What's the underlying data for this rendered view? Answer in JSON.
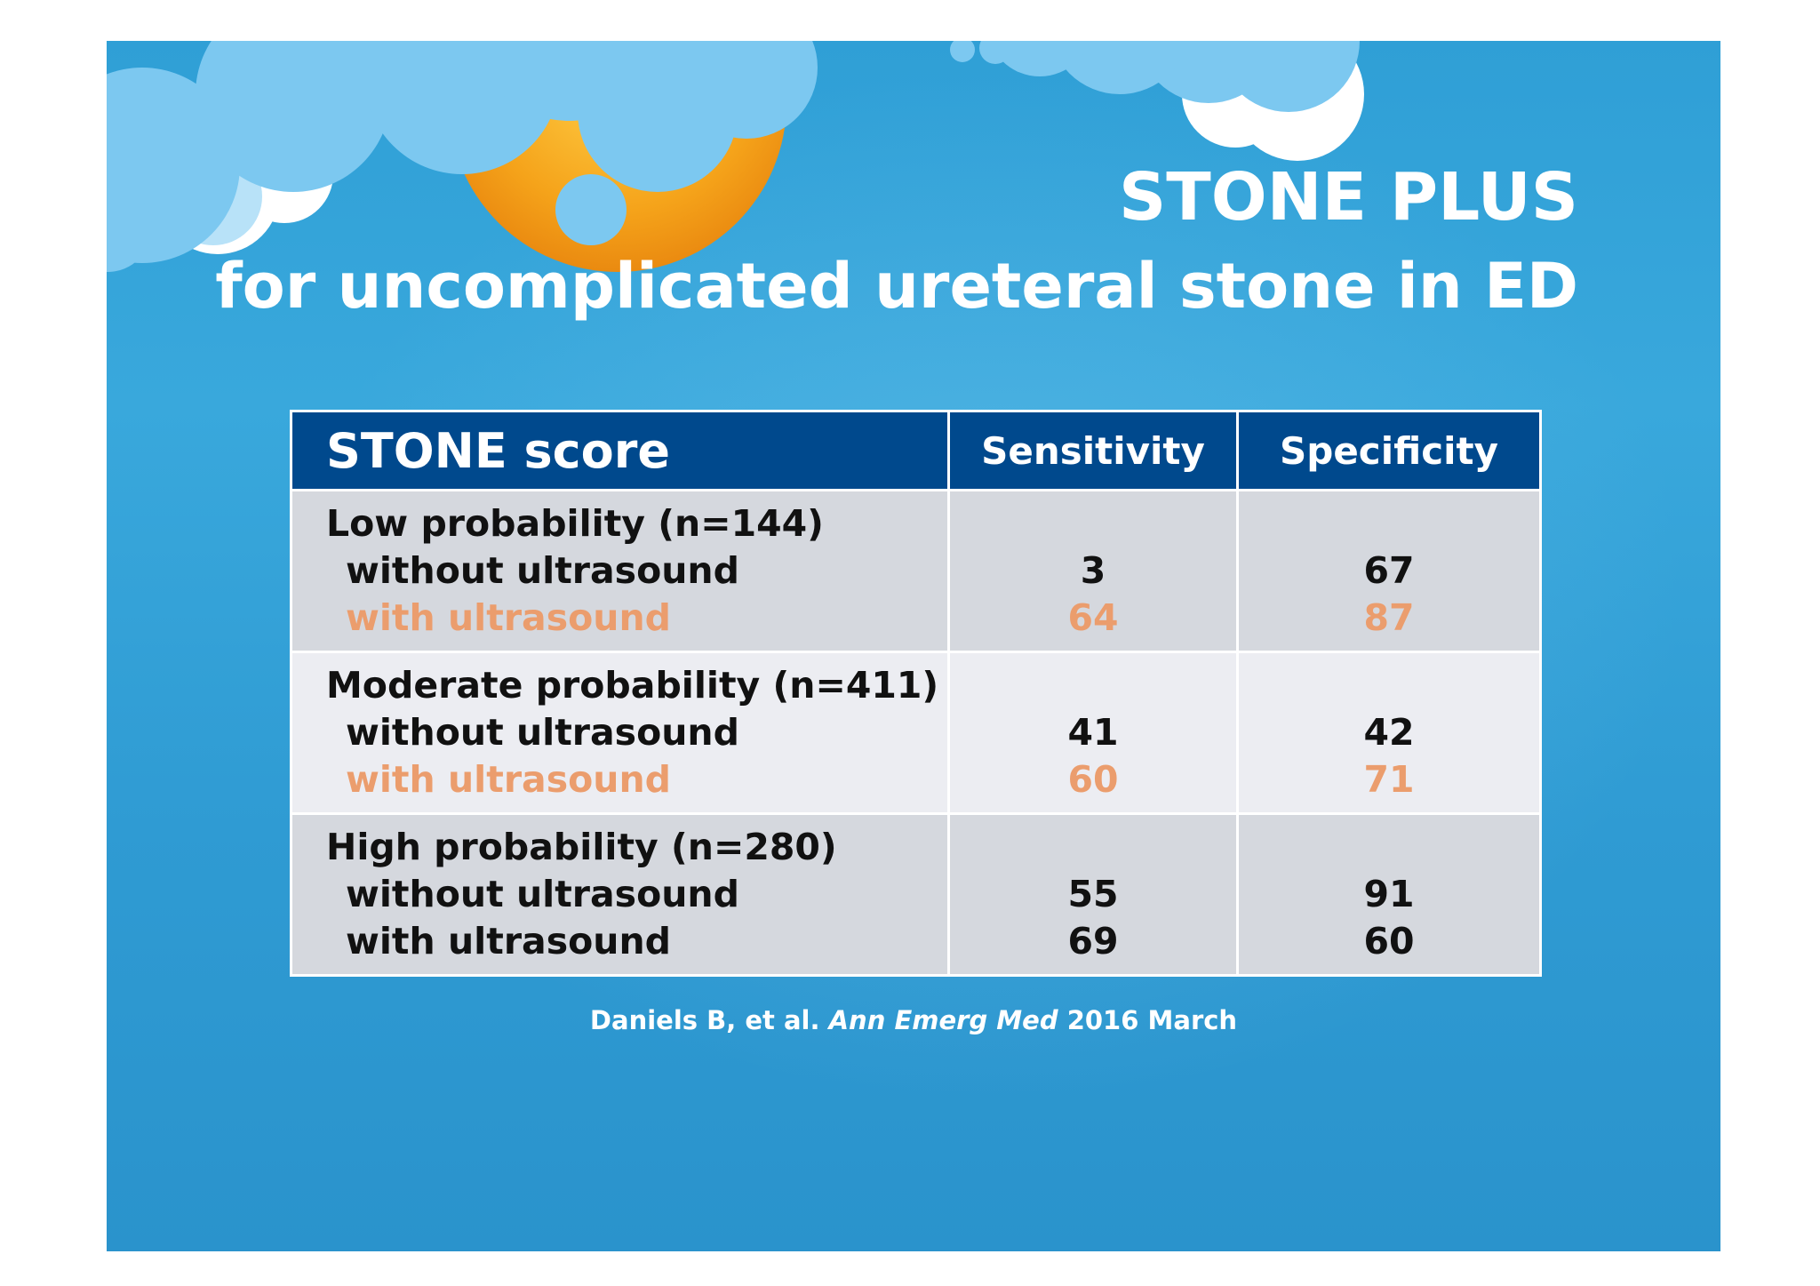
{
  "title": {
    "line1": "STONE PLUS",
    "line2": "for uncomplicated ureteral stone in ED"
  },
  "table": {
    "headers": [
      "STONE score",
      "Sensitivity",
      "Specificity"
    ],
    "groups": [
      {
        "label": "Low probability (n=144)",
        "rows": [
          {
            "label": "without ultrasound",
            "sensitivity": "3",
            "specificity": "67",
            "highlight": false
          },
          {
            "label": "with ultrasound",
            "sensitivity": "64",
            "specificity": "87",
            "highlight": true
          }
        ]
      },
      {
        "label": "Moderate probability (n=411)",
        "rows": [
          {
            "label": "without ultrasound",
            "sensitivity": "41",
            "specificity": "42",
            "highlight": false
          },
          {
            "label": "with ultrasound",
            "sensitivity": "60",
            "specificity": "71",
            "highlight": true
          }
        ]
      },
      {
        "label": "High probability (n=280)",
        "rows": [
          {
            "label": "without ultrasound",
            "sensitivity": "55",
            "specificity": "91",
            "highlight": false
          },
          {
            "label": "with ultrasound",
            "sensitivity": "69",
            "specificity": "60",
            "highlight": false
          }
        ]
      }
    ]
  },
  "citation": {
    "authors": "Daniels B, et al.",
    "journal": "Ann Emerg Med",
    "date": "2016 March"
  },
  "colors": {
    "background": "#2f9fd6",
    "header": "#00498d",
    "highlight": "#eb9d6d",
    "sun": "#f5a31a",
    "cloud": "#7cc8f0"
  }
}
